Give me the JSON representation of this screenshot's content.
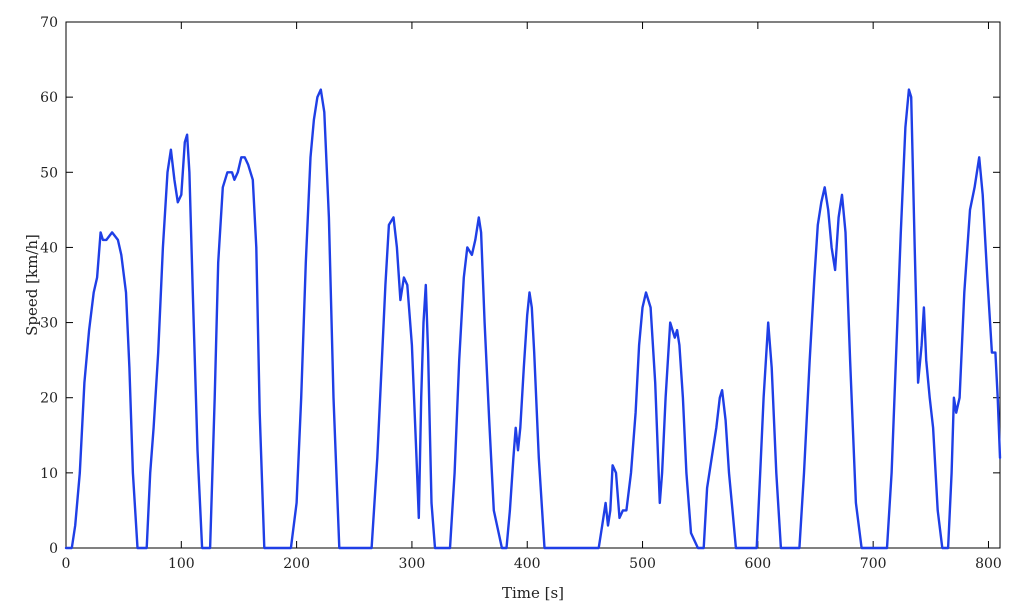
{
  "chart_data": {
    "type": "line",
    "title": "",
    "xlabel": "Time [s]",
    "ylabel": "Speed [km/h]",
    "xlim": [
      0,
      810
    ],
    "ylim": [
      0,
      70
    ],
    "xticks": [
      0,
      100,
      200,
      300,
      400,
      500,
      600,
      700,
      800
    ],
    "yticks": [
      0,
      10,
      20,
      30,
      40,
      50,
      60,
      70
    ],
    "grid": false,
    "legend": "none",
    "line_color": "#1f3fe6",
    "series": [
      {
        "x": [
          0,
          5,
          8,
          12,
          16,
          20,
          24,
          27,
          30,
          32,
          35,
          40,
          45,
          48,
          52,
          55,
          58,
          62,
          70,
          73,
          76,
          80,
          84,
          88,
          91,
          94,
          97,
          100,
          103,
          105,
          107,
          110,
          114,
          118,
          122,
          125,
          129,
          132,
          136,
          140,
          144,
          146,
          149,
          152,
          155,
          158,
          162,
          165,
          168,
          172,
          177,
          195,
          200,
          204,
          208,
          212,
          215,
          218,
          221,
          224,
          228,
          232,
          237,
          260,
          265,
          270,
          274,
          277,
          280,
          284,
          287,
          290,
          293,
          296,
          300,
          304,
          306,
          308,
          310,
          312,
          314,
          317,
          320,
          333,
          337,
          341,
          345,
          348,
          352,
          355,
          358,
          360,
          363,
          367,
          371,
          378,
          382,
          385,
          388,
          390,
          392,
          394,
          397,
          400,
          402,
          404,
          406,
          410,
          415,
          418,
          462,
          465,
          468,
          470,
          472,
          474,
          477,
          480,
          483,
          486,
          490,
          494,
          497,
          500,
          503,
          507,
          511,
          515,
          517,
          520,
          524,
          528,
          530,
          532,
          535,
          538,
          542,
          548,
          553,
          556,
          560,
          564,
          567,
          569,
          572,
          575,
          578,
          581,
          583,
          599,
          602,
          605,
          609,
          612,
          616,
          620,
          625,
          636,
          640,
          645,
          649,
          652,
          655,
          658,
          661,
          664,
          667,
          670,
          673,
          676,
          680,
          685,
          690,
          708,
          712,
          716,
          720,
          724,
          728,
          731,
          733,
          736,
          739,
          742,
          744,
          746,
          749,
          752,
          756,
          760,
          765,
          768,
          770,
          772,
          775,
          779,
          784,
          788,
          792,
          795,
          799,
          803,
          806,
          808,
          810
        ],
        "values": [
          0,
          0,
          3,
          10,
          22,
          29,
          34,
          36,
          42,
          41,
          41,
          42,
          41,
          39,
          34,
          24,
          10,
          0,
          0,
          10,
          16,
          26,
          40,
          50,
          53,
          49,
          46,
          47,
          54,
          55,
          50,
          34,
          13,
          0,
          0,
          0,
          20,
          38,
          48,
          50,
          50,
          49,
          50,
          52,
          52,
          51,
          49,
          40,
          18,
          0,
          0,
          0,
          6,
          20,
          38,
          52,
          57,
          60,
          61,
          58,
          44,
          20,
          0,
          0,
          0,
          12,
          25,
          35,
          43,
          44,
          40,
          33,
          36,
          35,
          27,
          12,
          4,
          20,
          30,
          35,
          26,
          6,
          0,
          0,
          10,
          25,
          36,
          40,
          39,
          41,
          44,
          42,
          30,
          17,
          5,
          0,
          0,
          5,
          12,
          16,
          13,
          16,
          24,
          31,
          34,
          32,
          26,
          12,
          0,
          0,
          0,
          3,
          6,
          3,
          5,
          11,
          10,
          4,
          5,
          5,
          10,
          18,
          27,
          32,
          34,
          32,
          22,
          6,
          10,
          20,
          30,
          28,
          29,
          27,
          20,
          10,
          2,
          0,
          0,
          8,
          12,
          16,
          20,
          21,
          17,
          10,
          5,
          0,
          0,
          0,
          10,
          20,
          30,
          24,
          10,
          0,
          0,
          0,
          10,
          25,
          36,
          43,
          46,
          48,
          45,
          40,
          37,
          44,
          47,
          42,
          25,
          6,
          0,
          0,
          0,
          10,
          26,
          42,
          56,
          61,
          60,
          40,
          22,
          27,
          32,
          25,
          20,
          16,
          5,
          0,
          0,
          10,
          20,
          18,
          20,
          34,
          45,
          48,
          52,
          47,
          36,
          26,
          26,
          20,
          12
        ]
      }
    ]
  }
}
